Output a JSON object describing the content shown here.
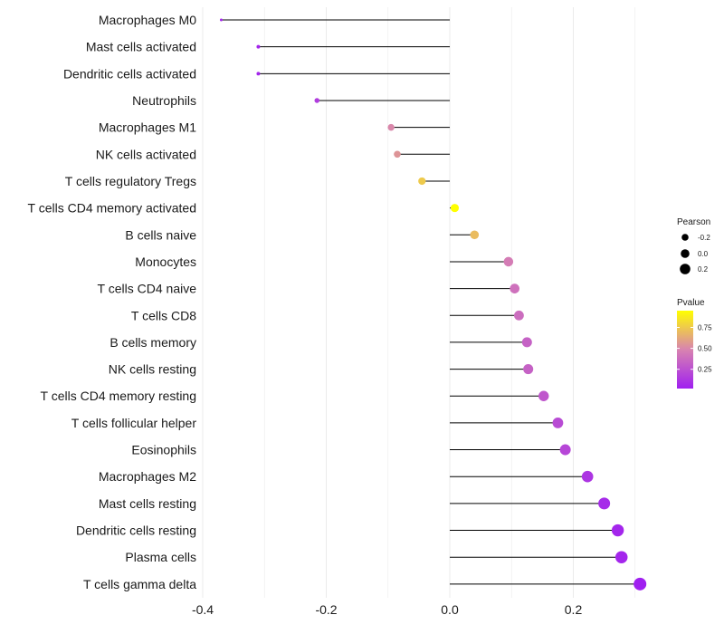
{
  "chart_data": {
    "type": "lollipop",
    "categories": [
      "Macrophages M0",
      "Mast cells activated",
      "Dendritic cells activated",
      "Neutrophils",
      "Macrophages M1",
      "NK cells activated",
      "T cells regulatory  Tregs",
      "T cells CD4 memory activated",
      "B cells naive",
      "Monocytes",
      "T cells CD4 naive",
      "T cells CD8",
      "B cells memory",
      "NK cells resting",
      "T cells CD4 memory resting",
      "T cells follicular helper",
      "Eosinophils",
      "Macrophages M2",
      "Mast cells resting",
      "Dendritic cells resting",
      "Plasma cells",
      "T cells gamma delta"
    ],
    "values": [
      -0.37,
      -0.31,
      -0.31,
      -0.215,
      -0.095,
      -0.085,
      -0.045,
      0.008,
      0.04,
      0.095,
      0.105,
      0.112,
      0.125,
      0.127,
      0.152,
      0.175,
      0.187,
      0.223,
      0.25,
      0.272,
      0.278,
      0.308
    ],
    "pvalues": [
      0.05,
      0.05,
      0.05,
      0.15,
      0.5,
      0.55,
      0.75,
      0.95,
      0.7,
      0.45,
      0.4,
      0.38,
      0.33,
      0.33,
      0.28,
      0.22,
      0.2,
      0.12,
      0.07,
      0.05,
      0.05,
      0.02
    ],
    "xlim": [
      -0.4,
      0.3
    ],
    "xticks": [
      -0.4,
      -0.2,
      0.0,
      0.2
    ],
    "xtick_labels": [
      "-0.4",
      "-0.2",
      "0.0",
      "0.2"
    ],
    "grid": true,
    "legend": {
      "size_title": "Pearson",
      "size_entries": [
        {
          "label": "-0.2",
          "value": -0.2
        },
        {
          "label": "0.0",
          "value": 0.0
        },
        {
          "label": "0.2",
          "value": 0.2
        }
      ],
      "color_title": "Pvalue",
      "color_ticks": [
        {
          "label": "0.75",
          "value": 0.75
        },
        {
          "label": "0.50",
          "value": 0.5
        },
        {
          "label": "0.25",
          "value": 0.25
        }
      ],
      "color_range": [
        0.02,
        0.95
      ],
      "placement": "right"
    },
    "colors": {
      "low": "#a020f0",
      "mid": "#d883b0",
      "high": "#ffff00",
      "stem": "#000000",
      "grid": "#ebebeb"
    }
  }
}
